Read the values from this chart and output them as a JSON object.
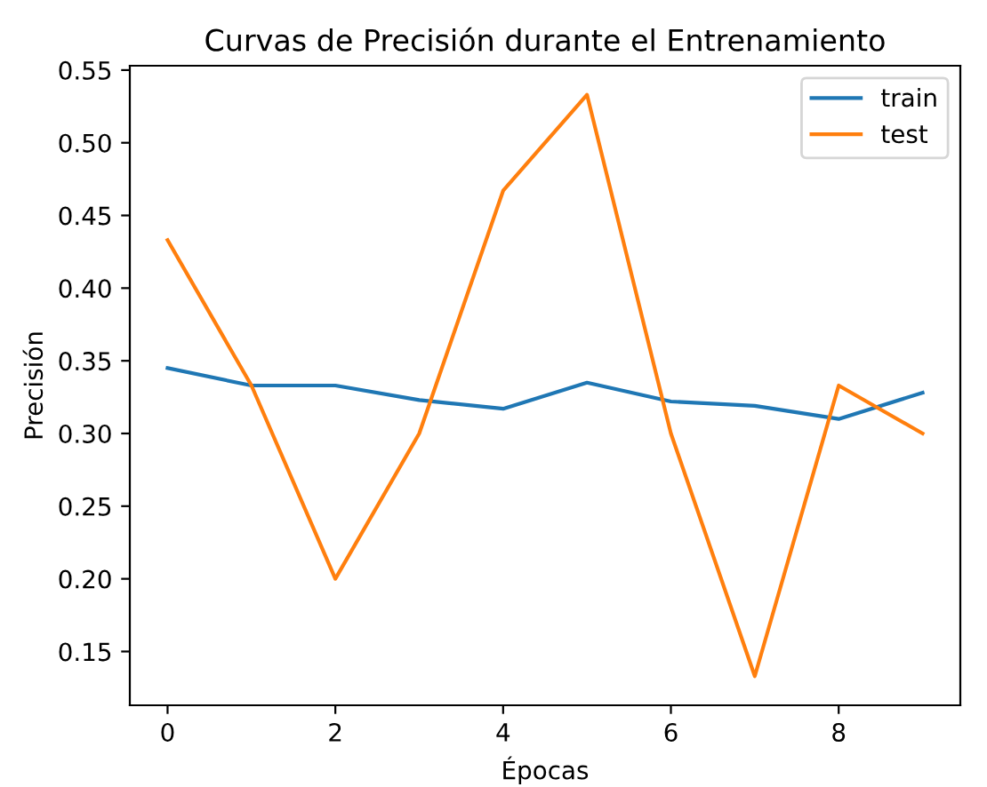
{
  "chart_data": {
    "type": "line",
    "title": "Curvas de Precisión durante el Entrenamiento",
    "xlabel": "Épocas",
    "ylabel": "Precisión",
    "x": [
      0,
      1,
      2,
      3,
      4,
      5,
      6,
      7,
      8,
      9
    ],
    "series": [
      {
        "name": "train",
        "color": "#1f77b4",
        "values": [
          0.345,
          0.333,
          0.333,
          0.323,
          0.317,
          0.335,
          0.322,
          0.319,
          0.31,
          0.328
        ]
      },
      {
        "name": "test",
        "color": "#ff7f0e",
        "values": [
          0.433,
          0.333,
          0.2,
          0.3,
          0.467,
          0.533,
          0.3,
          0.133,
          0.333,
          0.3
        ]
      }
    ],
    "xlim": [
      -0.45,
      9.45
    ],
    "xticks": [
      0,
      2,
      4,
      6,
      8
    ],
    "ylim": [
      0.113,
      0.553
    ],
    "yticks": [
      0.15,
      {
        "value": 0.2,
        "label": "0.20"
      },
      0.25,
      {
        "value": 0.3,
        "label": "0.30"
      },
      0.35,
      {
        "value": 0.4,
        "label": "0.40"
      },
      0.45,
      {
        "value": 0.5,
        "label": "0.50"
      },
      0.55
    ],
    "legend": "top right",
    "grid": false
  }
}
